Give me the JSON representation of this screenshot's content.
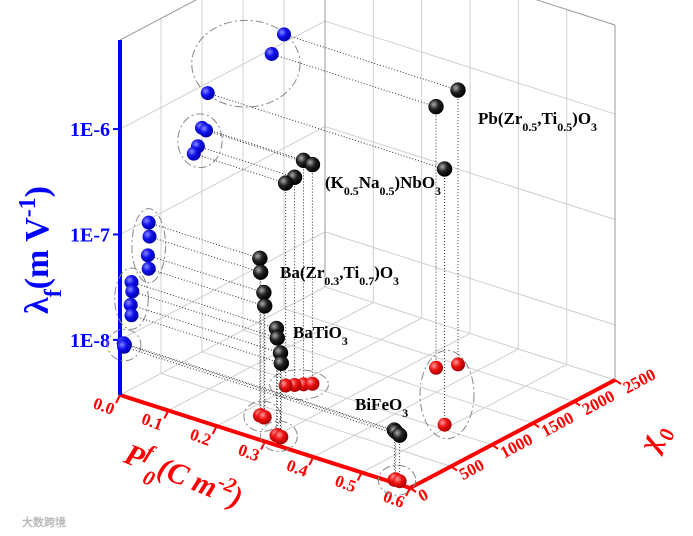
{
  "chart_data": {
    "type": "scatter3d",
    "x_label": [
      {
        "text": "P"
      },
      {
        "text": "f",
        "sup": true
      },
      {
        "text": "0",
        "sub": true
      },
      {
        "text": "(C m"
      },
      {
        "text": "-2",
        "sup": true
      },
      {
        "text": ")"
      }
    ],
    "y_label": [
      {
        "text": "χ"
      },
      {
        "text": "0",
        "sub": true
      }
    ],
    "z_label": [
      {
        "text": "λ"
      },
      {
        "text": "f",
        "sub": true
      },
      {
        "text": "(m V"
      },
      {
        "text": "-1",
        "sup": true
      },
      {
        "text": ")"
      }
    ],
    "xlim": [
      0,
      0.6
    ],
    "xticks": [
      {
        "value": 0,
        "label": "0.0"
      },
      0.1,
      0.2,
      0.3,
      0.4,
      0.5,
      0.6
    ],
    "ylim": [
      0,
      2500
    ],
    "yticks": [
      0,
      500,
      1000,
      1500,
      2000,
      2500
    ],
    "zlim": [
      3e-09,
      7e-06
    ],
    "zscale": "log",
    "zticks": [
      {
        "value": 1e-08,
        "label": "1E-8"
      },
      {
        "value": 1e-07,
        "label": "1E-7"
      },
      {
        "value": 1e-06,
        "label": "1E-6"
      }
    ],
    "grid": true,
    "color": "#000000",
    "back_wall_color": "#0000ff",
    "floor_color": "#ff0000",
    "series": [
      {
        "name": [
          {
            "text": "Pb(Zr"
          },
          {
            "text": "0.5",
            "sub": true
          },
          {
            "text": ",Ti"
          },
          {
            "text": "0.5",
            "sub": true
          },
          {
            "text": ")O"
          },
          {
            "text": "3",
            "sub": true
          }
        ],
        "x": [
          0.36,
          0.34,
          0.49
        ],
        "y": [
          2000,
          1850,
          1070
        ],
        "z": [
          1.2e-06,
          9e-07,
          8e-07
        ]
      },
      {
        "name": [
          {
            "text": "(K"
          },
          {
            "text": "0.5",
            "sub": true
          },
          {
            "text": "Na"
          },
          {
            "text": "0.5",
            "sub": true
          },
          {
            "text": ")NbO"
          },
          {
            "text": "3",
            "sub": true
          }
        ],
        "x": [
          0.21,
          0.22,
          0.2,
          0.19
        ],
        "y": [
          1000,
          1050,
          950,
          900
        ],
        "z": [
          4e-07,
          3.6e-07,
          2.8e-07,
          2.5e-07
        ]
      },
      {
        "name": [
          {
            "text": "Ba(Zr"
          },
          {
            "text": "0.3",
            "sub": true
          },
          {
            "text": ",Ti"
          },
          {
            "text": "0.7",
            "sub": true
          },
          {
            "text": ")O"
          },
          {
            "text": "3",
            "sub": true
          }
        ],
        "x": [
          0.23,
          0.23,
          0.24,
          0.24
        ],
        "y": [
          350,
          360,
          340,
          350
        ],
        "z": [
          9.3e-08,
          6.8e-08,
          4.6e-08,
          3.4e-08
        ]
      },
      {
        "name": [
          {
            "text": "BaTiO"
          },
          {
            "text": "3",
            "sub": true
          }
        ],
        "x": [
          0.3,
          0.3,
          0.31,
          0.31
        ],
        "y": [
          140,
          150,
          130,
          140
        ],
        "z": [
          3.1e-08,
          2.5e-08,
          1.9e-08,
          1.5e-08
        ]
      },
      {
        "name": [
          {
            "text": "BiFeO"
          },
          {
            "text": "3",
            "sub": true
          }
        ],
        "x": [
          0.56,
          0.56,
          0.57
        ],
        "y": [
          45,
          60,
          50
        ],
        "z": [
          8.9e-09,
          8.5e-09,
          8.2e-09
        ]
      }
    ],
    "watermark": "大数跨境"
  }
}
